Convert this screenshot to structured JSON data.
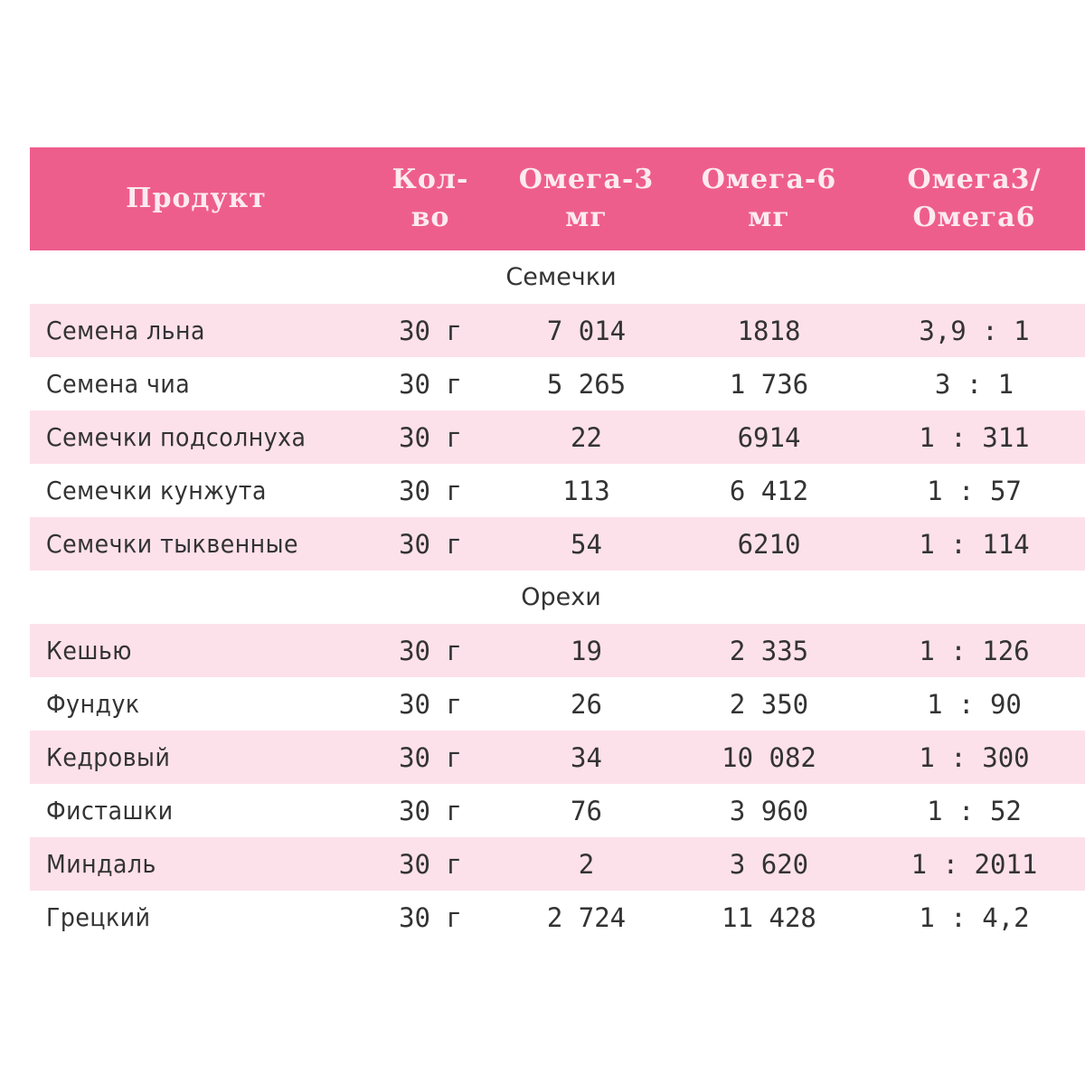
{
  "header": {
    "product": "Продукт",
    "qty": "Кол-\nво",
    "omega3": "Омега-3\nмг",
    "omega6": "Омега-6\nмг",
    "ratio": "Омега3/\nОмега6"
  },
  "sections": [
    {
      "title": "Семечки",
      "rows": [
        {
          "name": "Семена льна",
          "qty": "30 г",
          "omega3": "7 014",
          "omega6": "1818",
          "ratio": "3,9 : 1"
        },
        {
          "name": "Семена чиа",
          "qty": "30 г",
          "omega3": "5 265",
          "omega6": "1 736",
          "ratio": "3 : 1"
        },
        {
          "name": "Семечки подсолнуха",
          "qty": "30 г",
          "omega3": "22",
          "omega6": "6914",
          "ratio": "1 : 311"
        },
        {
          "name": "Семечки кунжута",
          "qty": "30 г",
          "omega3": "113",
          "omega6": "6 412",
          "ratio": "1 : 57"
        },
        {
          "name": "Семечки тыквенные",
          "qty": "30 г",
          "omega3": "54",
          "omega6": "6210",
          "ratio": "1 : 114"
        }
      ]
    },
    {
      "title": "Орехи",
      "rows": [
        {
          "name": "Кешью",
          "qty": "30 г",
          "omega3": "19",
          "omega6": "2 335",
          "ratio": "1 : 126"
        },
        {
          "name": "Фундук",
          "qty": "30 г",
          "omega3": "26",
          "omega6": "2 350",
          "ratio": "1 : 90"
        },
        {
          "name": "Кедровый",
          "qty": "30 г",
          "omega3": "34",
          "omega6": "10 082",
          "ratio": "1 : 300"
        },
        {
          "name": "Фисташки",
          "qty": "30 г",
          "omega3": "76",
          "omega6": "3 960",
          "ratio": "1 : 52"
        },
        {
          "name": "Миндаль",
          "qty": "30 г",
          "omega3": "2",
          "omega6": "3 620",
          "ratio": "1 : 2011"
        },
        {
          "name": "Грецкий",
          "qty": "30 г",
          "omega3": "2 724",
          "omega6": "11 428",
          "ratio": "1 : 4,2"
        }
      ]
    }
  ],
  "colors": {
    "header_bg": "#ee5e8c",
    "header_text": "#fdeaf1",
    "row_shade": "#fde1ea",
    "text": "#333333"
  }
}
